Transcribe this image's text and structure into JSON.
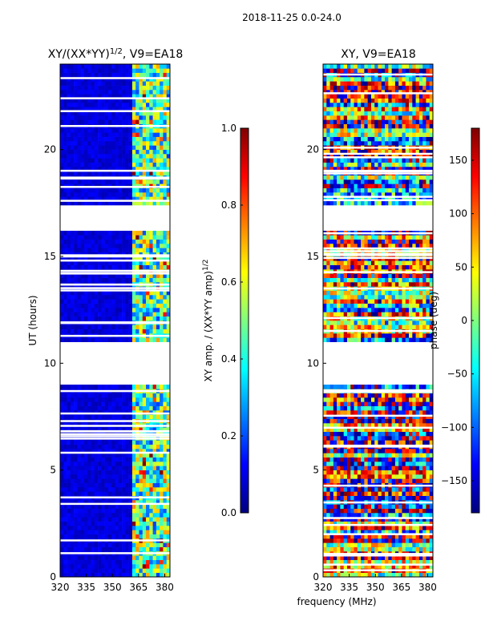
{
  "figure": {
    "suptitle": "2018-11-25 0.0-24.0",
    "shared_xlabel": "frequency (MHz)"
  },
  "colors": {
    "jet": [
      "#00007f",
      "#0000ff",
      "#007fff",
      "#00ffff",
      "#7fff7f",
      "#ffff00",
      "#ff7f00",
      "#ff0000",
      "#7f0000"
    ]
  },
  "chart_data": [
    {
      "type": "heatmap",
      "title_prefix": "XY/(XX*YY)",
      "title_exponent": "1/2",
      "title_suffix": ", V9=EA18",
      "xlabel": "",
      "ylabel": "UT (hours)",
      "xlim": [
        320,
        383
      ],
      "ylim": [
        0,
        24
      ],
      "xticks": [
        320,
        335,
        350,
        365,
        380
      ],
      "yticks": [
        0,
        5,
        10,
        15,
        20
      ],
      "colorbar": {
        "label_prefix": "XY amp. / (XX*YY amp)",
        "label_exponent": "1/2",
        "range": [
          0,
          1
        ],
        "ticks": [
          "0.0",
          "0.2",
          "0.4",
          "0.6",
          "0.8",
          "1.0"
        ]
      },
      "data_gaps_hours": [
        [
          9.0,
          11.0
        ],
        [
          16.2,
          17.3
        ]
      ],
      "description_values": {
        "low_band_level": 0.05,
        "high_band_start_mhz": 362,
        "high_band_level": 0.45
      }
    },
    {
      "type": "heatmap",
      "title": "XY, V9=EA18",
      "xlabel": "",
      "ylabel": "",
      "xlim": [
        320,
        383
      ],
      "ylim": [
        0,
        24
      ],
      "xticks": [
        320,
        335,
        350,
        365,
        380
      ],
      "yticks": [
        0,
        5,
        10,
        15,
        20
      ],
      "colorbar": {
        "label": "phase (deg)",
        "range": [
          -180,
          180
        ],
        "ticks": [
          "−150",
          "−100",
          "−50",
          "0",
          "50",
          "100",
          "150"
        ]
      },
      "data_gaps_hours": [
        [
          9.0,
          11.0
        ],
        [
          16.2,
          17.3
        ]
      ]
    }
  ]
}
